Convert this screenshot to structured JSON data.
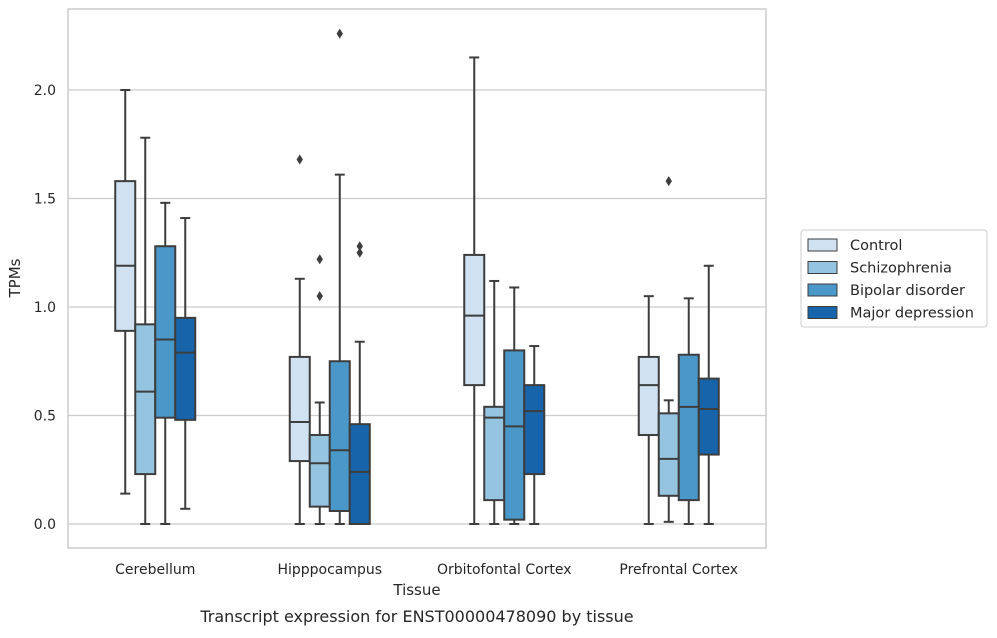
{
  "chart_data": {
    "type": "box",
    "title": "",
    "caption": "Transcript expression for ENST00000478090 by tissue",
    "xlabel": "Tissue",
    "ylabel": "TPMs",
    "ylim": [
      -0.11,
      2.38
    ],
    "yticks": [
      0.0,
      0.5,
      1.0,
      1.5,
      2.0
    ],
    "ytick_labels": [
      "0.0",
      "0.5",
      "1.0",
      "1.5",
      "2.0"
    ],
    "grid": "horizontal",
    "legend_position": "right",
    "categories": [
      "Cerebellum",
      "Hipppocampus",
      "Orbitofontal Cortex",
      "Prefrontal Cortex"
    ],
    "series": [
      {
        "name": "Control",
        "color": "#d0e1f2",
        "boxes": [
          {
            "whisker_low": 0.14,
            "q1": 0.89,
            "median": 1.19,
            "q3": 1.58,
            "whisker_high": 2.0,
            "outliers": []
          },
          {
            "whisker_low": 0.0,
            "q1": 0.29,
            "median": 0.47,
            "q3": 0.77,
            "whisker_high": 1.13,
            "outliers": [
              1.68
            ]
          },
          {
            "whisker_low": 0.0,
            "q1": 0.64,
            "median": 0.96,
            "q3": 1.24,
            "whisker_high": 2.15,
            "outliers": []
          },
          {
            "whisker_low": 0.0,
            "q1": 0.41,
            "median": 0.64,
            "q3": 0.77,
            "whisker_high": 1.05,
            "outliers": []
          }
        ]
      },
      {
        "name": "Schizophrenia",
        "color": "#94c4df",
        "boxes": [
          {
            "whisker_low": 0.0,
            "q1": 0.23,
            "median": 0.61,
            "q3": 0.92,
            "whisker_high": 1.78,
            "outliers": []
          },
          {
            "whisker_low": 0.0,
            "q1": 0.08,
            "median": 0.28,
            "q3": 0.41,
            "whisker_high": 0.56,
            "outliers": [
              1.05,
              1.22
            ]
          },
          {
            "whisker_low": 0.0,
            "q1": 0.11,
            "median": 0.49,
            "q3": 0.54,
            "whisker_high": 1.12,
            "outliers": []
          },
          {
            "whisker_low": 0.01,
            "q1": 0.13,
            "median": 0.3,
            "q3": 0.51,
            "whisker_high": 0.57,
            "outliers": [
              1.58
            ]
          }
        ]
      },
      {
        "name": "Bipolar disorder",
        "color": "#4a98c9",
        "boxes": [
          {
            "whisker_low": 0.0,
            "q1": 0.49,
            "median": 0.85,
            "q3": 1.28,
            "whisker_high": 1.48,
            "outliers": []
          },
          {
            "whisker_low": 0.0,
            "q1": 0.06,
            "median": 0.34,
            "q3": 0.75,
            "whisker_high": 1.61,
            "outliers": [
              2.26
            ]
          },
          {
            "whisker_low": 0.0,
            "q1": 0.02,
            "median": 0.45,
            "q3": 0.8,
            "whisker_high": 1.09,
            "outliers": []
          },
          {
            "whisker_low": 0.0,
            "q1": 0.11,
            "median": 0.54,
            "q3": 0.78,
            "whisker_high": 1.04,
            "outliers": []
          }
        ]
      },
      {
        "name": "Major depression",
        "color": "#1764ab",
        "boxes": [
          {
            "whisker_low": 0.07,
            "q1": 0.48,
            "median": 0.79,
            "q3": 0.95,
            "whisker_high": 1.41,
            "outliers": []
          },
          {
            "whisker_low": 0.0,
            "q1": 0.0,
            "median": 0.24,
            "q3": 0.46,
            "whisker_high": 0.84,
            "outliers": [
              1.25,
              1.28
            ]
          },
          {
            "whisker_low": 0.0,
            "q1": 0.23,
            "median": 0.52,
            "q3": 0.64,
            "whisker_high": 0.82,
            "outliers": []
          },
          {
            "whisker_low": 0.0,
            "q1": 0.32,
            "median": 0.53,
            "q3": 0.67,
            "whisker_high": 1.19,
            "outliers": []
          }
        ]
      }
    ]
  }
}
